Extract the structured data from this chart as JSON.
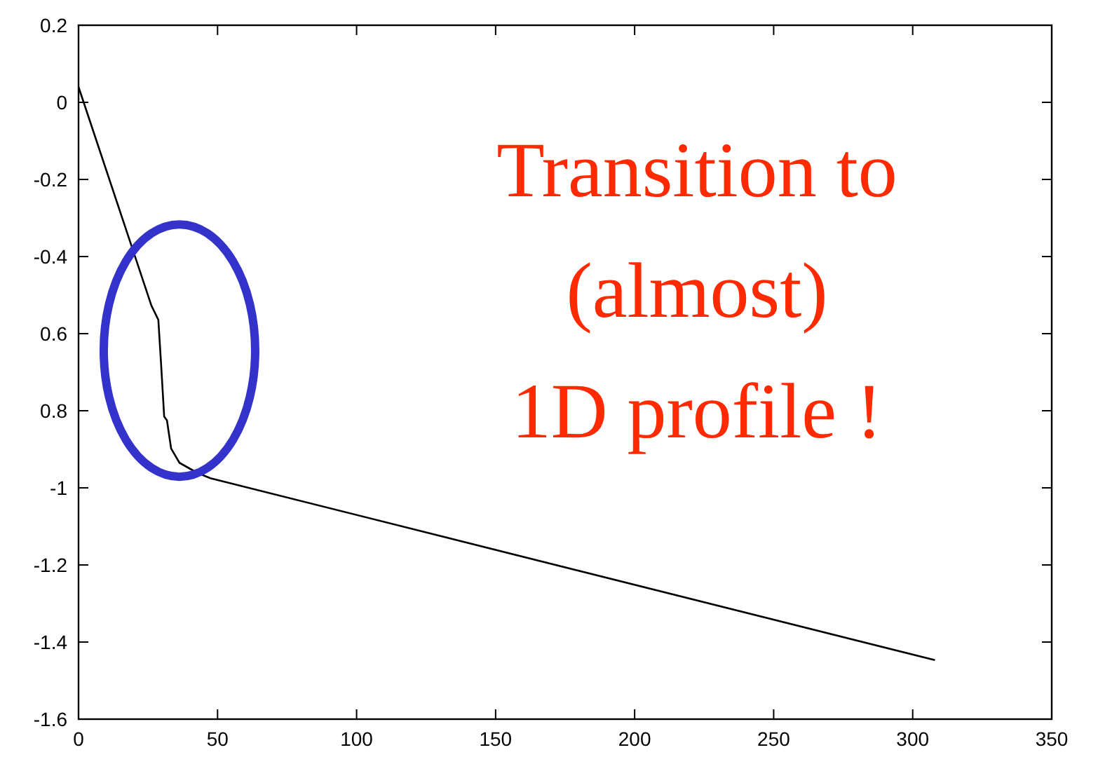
{
  "chart_data": {
    "type": "line",
    "x": [
      0,
      26.2,
      28.7,
      29.7,
      30.8,
      31.8,
      33.3,
      36.3,
      42.4,
      47.4,
      308
    ],
    "series": [
      {
        "color": "#000000",
        "values": [
          0.04,
          -0.527,
          -0.564,
          -0.68,
          -0.815,
          -0.825,
          -0.898,
          -0.935,
          -0.96,
          -0.975,
          -1.447
        ]
      }
    ],
    "xlim": [
      0,
      350
    ],
    "xticks": [
      0,
      50,
      100,
      150,
      200,
      250,
      300,
      350
    ],
    "ylim": [
      -1.6,
      0.2
    ],
    "yticks": [
      0.2,
      0,
      -0.2,
      -0.4,
      {
        "value": -0.6,
        "label": "0.6"
      },
      {
        "value": -0.8,
        "label": "0.8"
      },
      -1,
      -1.2,
      -1.4,
      -1.6
    ],
    "grid": false,
    "marker": "none",
    "line_style": "solid",
    "annotations": [
      "Transition to\n(almost)\n1D profile !"
    ]
  }
}
